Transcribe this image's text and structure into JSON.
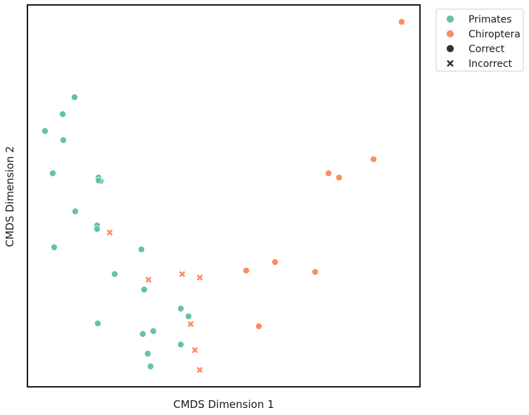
{
  "chart_data": {
    "type": "scatter",
    "xlabel": "CMDS Dimension 1",
    "ylabel": "CMDS Dimension 2",
    "xlim": [
      0,
      558
    ],
    "ylim": [
      0,
      542
    ],
    "ticks": "none",
    "grid": false,
    "legend_position": "outside top-right",
    "legend": [
      {
        "label": "Primates",
        "kind": "hue",
        "color": "#66c2a5"
      },
      {
        "label": "Chiroptera",
        "kind": "hue",
        "color": "#fc8d62"
      },
      {
        "label": "Correct",
        "kind": "marker",
        "marker": "circle"
      },
      {
        "label": "Incorrect",
        "kind": "marker",
        "marker": "x"
      }
    ],
    "series": [
      {
        "name": "Primates",
        "color": "#66c2a5",
        "points": [
          {
            "x": 67,
            "y": 411,
            "correct": true
          },
          {
            "x": 50,
            "y": 387,
            "correct": true
          },
          {
            "x": 25,
            "y": 363,
            "correct": true
          },
          {
            "x": 51,
            "y": 350,
            "correct": true
          },
          {
            "x": 36,
            "y": 303,
            "correct": true
          },
          {
            "x": 101,
            "y": 297,
            "correct": true
          },
          {
            "x": 104,
            "y": 292,
            "correct": true
          },
          {
            "x": 101,
            "y": 293,
            "correct": true
          },
          {
            "x": 68,
            "y": 249,
            "correct": true
          },
          {
            "x": 99,
            "y": 229,
            "correct": true
          },
          {
            "x": 99,
            "y": 224,
            "correct": true
          },
          {
            "x": 38,
            "y": 198,
            "correct": true
          },
          {
            "x": 162,
            "y": 195,
            "correct": true
          },
          {
            "x": 124,
            "y": 160,
            "correct": true
          },
          {
            "x": 166,
            "y": 138,
            "correct": true
          },
          {
            "x": 218,
            "y": 111,
            "correct": true
          },
          {
            "x": 229,
            "y": 100,
            "correct": true
          },
          {
            "x": 100,
            "y": 90,
            "correct": true
          },
          {
            "x": 179,
            "y": 79,
            "correct": true
          },
          {
            "x": 164,
            "y": 75,
            "correct": true
          },
          {
            "x": 218,
            "y": 60,
            "correct": true
          },
          {
            "x": 171,
            "y": 47,
            "correct": true
          },
          {
            "x": 175,
            "y": 29,
            "correct": true
          }
        ]
      },
      {
        "name": "Chiroptera",
        "color": "#fc8d62",
        "points": [
          {
            "x": 532,
            "y": 518,
            "correct": true
          },
          {
            "x": 492,
            "y": 323,
            "correct": true
          },
          {
            "x": 428,
            "y": 303,
            "correct": true
          },
          {
            "x": 443,
            "y": 297,
            "correct": true
          },
          {
            "x": 352,
            "y": 177,
            "correct": true
          },
          {
            "x": 311,
            "y": 165,
            "correct": true
          },
          {
            "x": 409,
            "y": 163,
            "correct": true
          },
          {
            "x": 329,
            "y": 86,
            "correct": true
          },
          {
            "x": 117,
            "y": 219,
            "correct": false
          },
          {
            "x": 172,
            "y": 152,
            "correct": false
          },
          {
            "x": 220,
            "y": 160,
            "correct": false
          },
          {
            "x": 245,
            "y": 155,
            "correct": false
          },
          {
            "x": 232,
            "y": 89,
            "correct": false
          },
          {
            "x": 238,
            "y": 52,
            "correct": false
          },
          {
            "x": 245,
            "y": 24,
            "correct": false
          }
        ]
      }
    ]
  }
}
